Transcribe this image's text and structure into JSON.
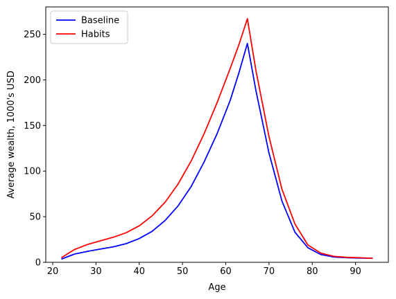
{
  "chart_data": {
    "type": "line",
    "xlabel": "Age",
    "ylabel": "Average wealth, 1000's USD",
    "xlim": [
      18.4,
      97.6
    ],
    "ylim": [
      0,
      280
    ],
    "xticks": [
      20,
      30,
      40,
      50,
      60,
      70,
      80,
      90
    ],
    "yticks": [
      0,
      50,
      100,
      150,
      200,
      250
    ],
    "grid": false,
    "legend_position": "top-left",
    "series": [
      {
        "name": "Baseline",
        "color": "#0000ff",
        "x": [
          22,
          25,
          28,
          31,
          34,
          37,
          40,
          43,
          46,
          49,
          52,
          55,
          58,
          61,
          63,
          65,
          67,
          70,
          73,
          76,
          79,
          82,
          85,
          88,
          91,
          94
        ],
        "values": [
          3.5,
          9.0,
          12.0,
          14.5,
          17.0,
          20.5,
          26.0,
          34.0,
          46.0,
          62.0,
          83.0,
          110.0,
          141.0,
          177.0,
          207.0,
          240.0,
          188.0,
          120.0,
          67.0,
          33.0,
          16.0,
          8.5,
          5.8,
          5.0,
          4.7,
          4.4
        ]
      },
      {
        "name": "Habits",
        "color": "#ff0000",
        "x": [
          22,
          25,
          28,
          31,
          34,
          37,
          40,
          43,
          46,
          49,
          52,
          55,
          58,
          61,
          63,
          65,
          67,
          70,
          73,
          76,
          79,
          82,
          85,
          88,
          91,
          94
        ],
        "values": [
          5.0,
          14.0,
          19.5,
          23.5,
          27.5,
          32.5,
          40.0,
          51.0,
          66.0,
          86.0,
          111.0,
          141.0,
          175.0,
          212.0,
          238.0,
          267.0,
          210.0,
          138.0,
          80.0,
          42.0,
          19.0,
          10.0,
          6.5,
          5.5,
          5.0,
          4.5
        ]
      }
    ]
  }
}
